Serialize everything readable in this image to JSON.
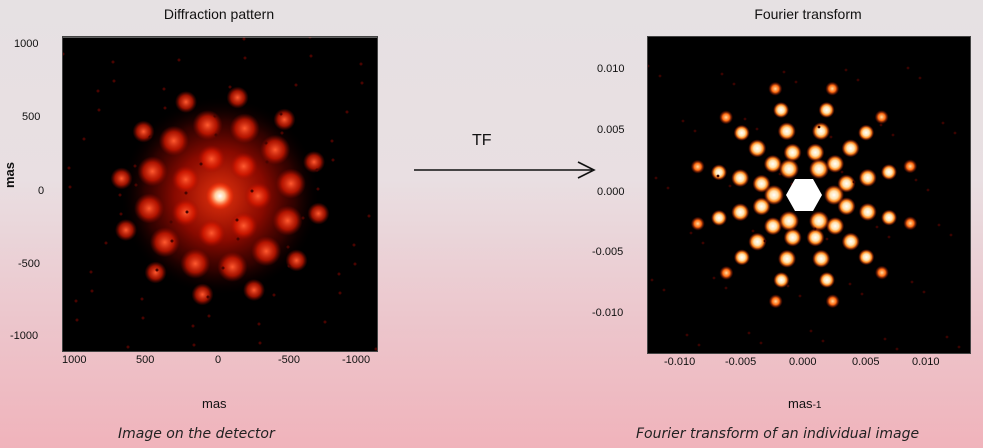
{
  "left_panel": {
    "title": "Diffraction pattern",
    "ylabel": "mas",
    "xlabel": "mas",
    "y_ticks": [
      "1000",
      "500",
      "0",
      "-500",
      "-1000"
    ],
    "x_ticks": [
      "1000",
      "500",
      "0",
      "-500",
      "-1000"
    ],
    "caption": "Image on the detector"
  },
  "arrow": {
    "label": "TF"
  },
  "right_panel": {
    "title": "Fourier transform",
    "xlabel": "mas",
    "xlabel_exponent": "-1",
    "y_ticks": [
      "0.010",
      "0.005",
      "0.000",
      "-0.005",
      "-0.010"
    ],
    "x_ticks": [
      "-0.010",
      "-0.005",
      "0.000",
      "0.005",
      "0.010"
    ],
    "caption": "Fourier transform of an individual image"
  },
  "colors": {
    "glow": "#ff2a00",
    "core": "#ffffff",
    "background": "#000000"
  }
}
